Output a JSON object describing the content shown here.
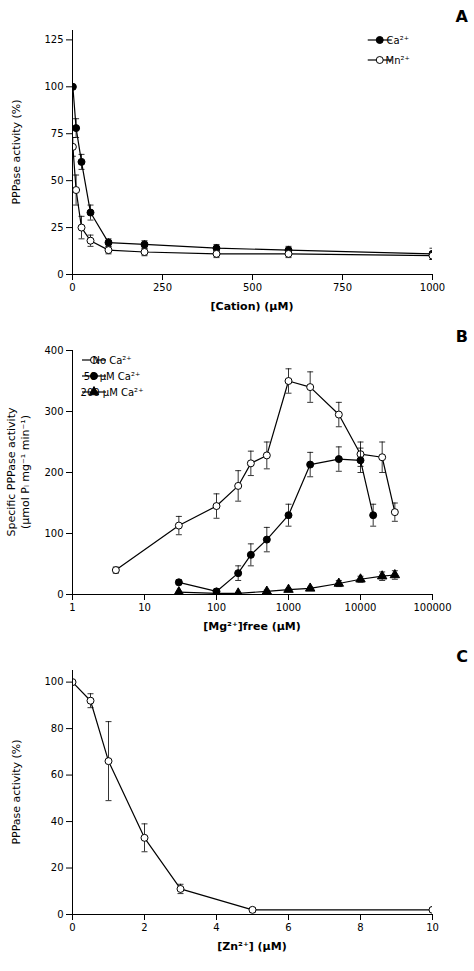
{
  "chart_data": [
    {
      "type": "line",
      "title": "A",
      "xlabel": "[Cation) (μM)",
      "ylabel": "PPPase activity (%)",
      "xlim": [
        0,
        1000
      ],
      "ylim": [
        0,
        130
      ],
      "xticks": [
        0,
        250,
        500,
        750,
        1000
      ],
      "yticks": [
        0,
        25,
        50,
        75,
        100,
        125
      ],
      "grid": false,
      "legend": "upper right",
      "series": [
        {
          "name": "Ca²⁺",
          "color": "#000000",
          "marker": "circle",
          "x": [
            1,
            10,
            25,
            50,
            100,
            200,
            400,
            600,
            1000
          ],
          "values": [
            100,
            78,
            60,
            33,
            17,
            16,
            14,
            13,
            11
          ],
          "yerr": [
            0,
            5,
            4,
            4,
            2,
            2,
            2,
            2,
            3
          ]
        },
        {
          "name": "Mn²⁺",
          "color": "#000000",
          "marker": "open_circle",
          "x": [
            1,
            10,
            25,
            50,
            100,
            200,
            400,
            600,
            1000
          ],
          "values": [
            68,
            45,
            25,
            18,
            13,
            12,
            11,
            11,
            10
          ],
          "yerr": [
            5,
            8,
            6,
            3,
            2,
            2,
            2,
            2,
            2
          ]
        }
      ]
    },
    {
      "type": "line",
      "title": "B",
      "xlabel": "[Mg²⁺]free (μM)",
      "ylabel": "Specific PPPase activity\n(μmol Pᵢ mg⁻¹ min⁻¹)",
      "log": "x",
      "xlim": [
        1,
        100000
      ],
      "ylim": [
        0,
        400
      ],
      "xticks": [
        1,
        10,
        100,
        1000,
        10000,
        100000
      ],
      "yticks": [
        0,
        100,
        200,
        300,
        400
      ],
      "grid": false,
      "legend": "upper left",
      "series": [
        {
          "name": "No Ca²⁺",
          "color": "#000000",
          "marker": "open_circle",
          "x": [
            4,
            30,
            100,
            200,
            300,
            500,
            1000,
            2000,
            5000,
            10000,
            20000,
            30000
          ],
          "values": [
            40,
            113,
            145,
            178,
            215,
            228,
            350,
            340,
            295,
            230,
            225,
            135
          ],
          "yerr": [
            5,
            15,
            20,
            25,
            20,
            22,
            20,
            25,
            20,
            20,
            25,
            15
          ]
        },
        {
          "name": "50 μM Ca²⁺",
          "color": "#000000",
          "marker": "circle",
          "x": [
            30,
            100,
            200,
            300,
            500,
            1000,
            2000,
            5000,
            10000,
            15000
          ],
          "values": [
            20,
            5,
            35,
            65,
            90,
            130,
            213,
            222,
            220,
            130
          ],
          "yerr": [
            4,
            4,
            12,
            18,
            20,
            18,
            20,
            20,
            20,
            18
          ]
        },
        {
          "name": "200 μM Ca²⁺",
          "color": "#000000",
          "marker": "triangle",
          "x": [
            30,
            100,
            200,
            500,
            1000,
            2000,
            5000,
            10000,
            20000,
            30000
          ],
          "values": [
            4,
            2,
            2,
            5,
            8,
            10,
            18,
            25,
            30,
            32
          ],
          "yerr": [
            1,
            1,
            1,
            2,
            2,
            2,
            5,
            5,
            7,
            7
          ]
        }
      ]
    },
    {
      "type": "line",
      "title": "C",
      "xlabel": "[Zn²⁺] (μM)",
      "ylabel": "PPPase activity (%)",
      "xlim": [
        0,
        10
      ],
      "ylim": [
        0,
        105
      ],
      "xticks": [
        0,
        2,
        4,
        6,
        8,
        10
      ],
      "yticks": [
        0,
        20,
        40,
        60,
        80,
        100
      ],
      "grid": false,
      "series": [
        {
          "color": "#000000",
          "marker": "open_circle",
          "x": [
            0,
            0.5,
            1,
            2,
            3,
            5,
            10
          ],
          "values": [
            100,
            92,
            66,
            33,
            11,
            2,
            2
          ],
          "yerr": [
            0,
            3,
            17,
            6,
            2,
            1,
            1
          ]
        }
      ]
    }
  ]
}
